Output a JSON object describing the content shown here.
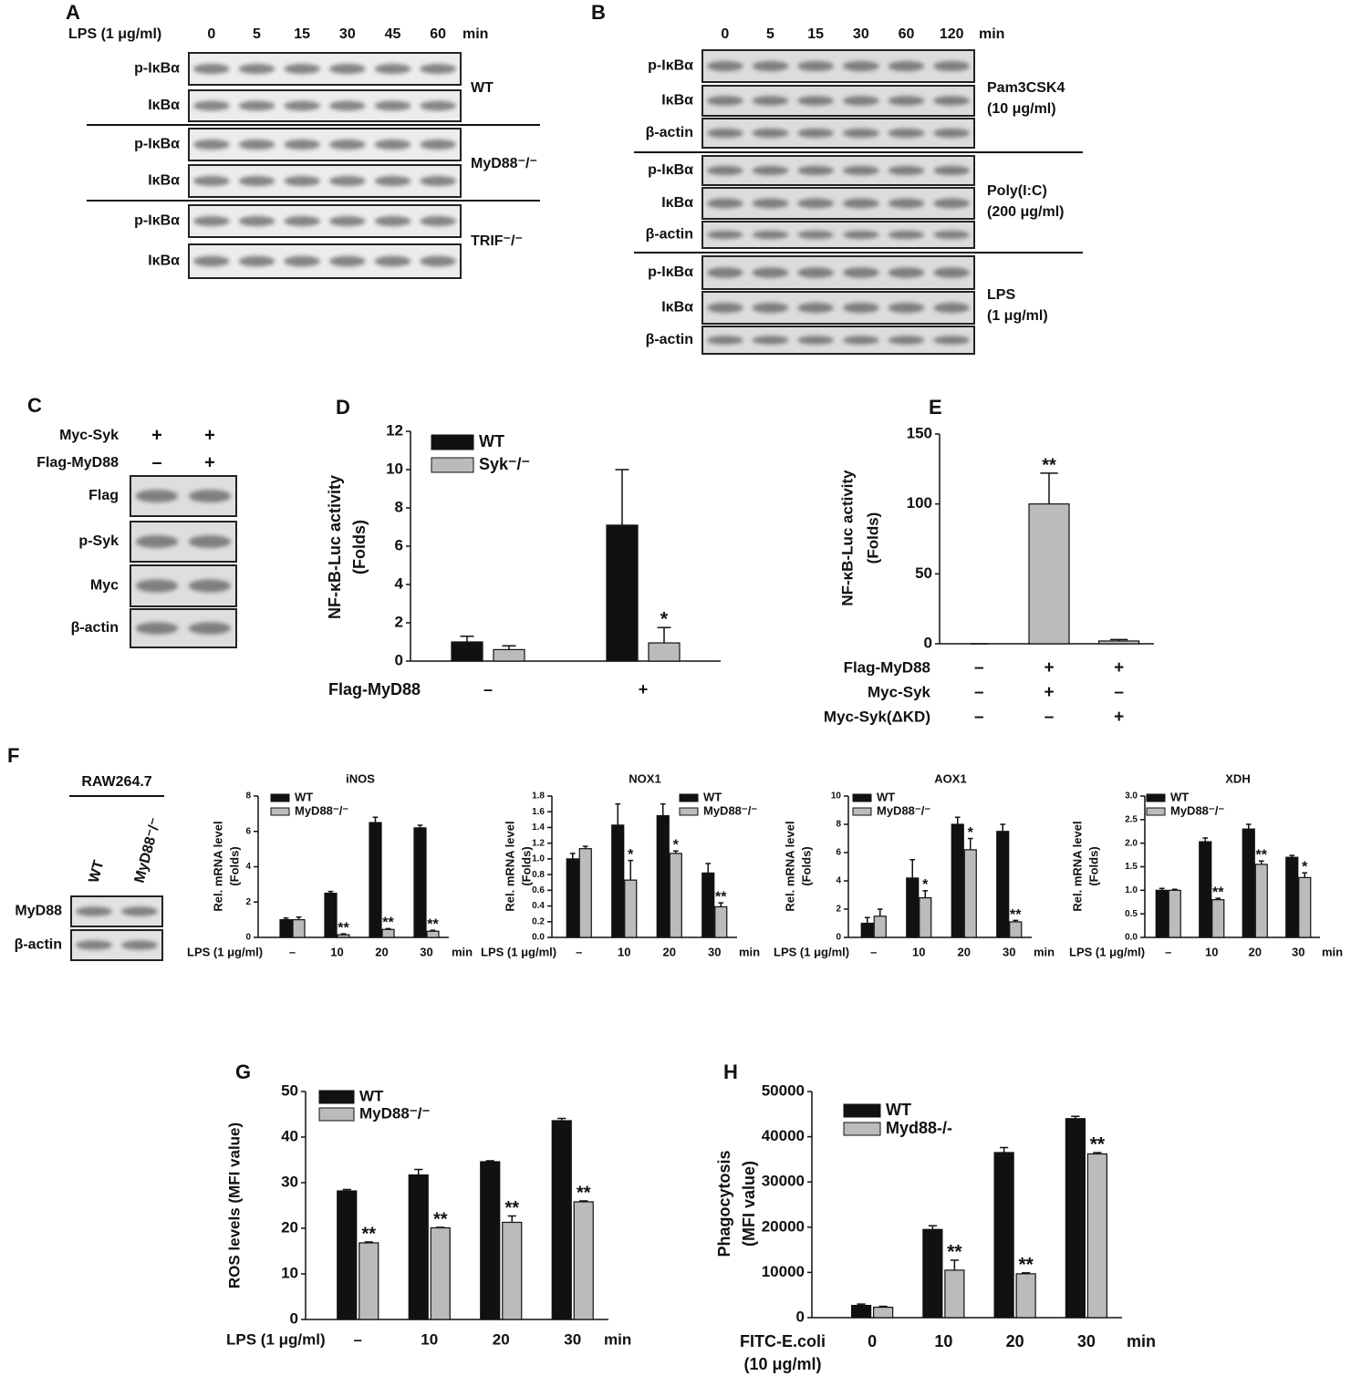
{
  "panel_labels": [
    "A",
    "B",
    "C",
    "D",
    "E",
    "F",
    "G",
    "H"
  ],
  "blots": [
    {
      "header_label": "LPS (1 μg/ml)",
      "lanes": [
        "0",
        "5",
        "15",
        "30",
        "45",
        "60"
      ],
      "unit": "min",
      "groups": [
        {
          "label": "WT",
          "rows": [
            "p-IκBα",
            "IκBα"
          ]
        },
        {
          "label": "MyD88⁻/⁻",
          "rows": [
            "p-IκBα",
            "IκBα"
          ]
        },
        {
          "label": "TRIF⁻/⁻",
          "rows": [
            "p-IκBα",
            "IκBα"
          ]
        }
      ]
    },
    {
      "lanes": [
        "0",
        "5",
        "15",
        "30",
        "60",
        "120"
      ],
      "unit": "min",
      "groups": [
        {
          "label": [
            "Pam3CSK4",
            "(10 μg/ml)"
          ],
          "rows": [
            "p-IκBα",
            "IκBα",
            "β-actin"
          ]
        },
        {
          "label": [
            "Poly(I:C)",
            "(200 μg/ml)"
          ],
          "rows": [
            "p-IκBα",
            "IκBα",
            "β-actin"
          ]
        },
        {
          "label": [
            "LPS",
            "(1 μg/ml)"
          ],
          "rows": [
            "p-IκBα",
            "IκBα",
            "β-actin"
          ]
        }
      ]
    },
    {
      "conditions": [
        {
          "label": "Myc-Syk",
          "signs": [
            "+",
            "+"
          ]
        },
        {
          "label": "Flag-MyD88",
          "signs": [
            "–",
            "+"
          ]
        }
      ],
      "groups": [
        {
          "rows": [
            "Flag",
            "p-Syk",
            "Myc",
            "β-actin"
          ]
        }
      ]
    },
    {
      "title": "RAW264.7",
      "lanes": [
        "WT",
        "MyD88⁻/⁻"
      ],
      "groups": [
        {
          "rows": [
            "MyD88",
            "β-actin"
          ]
        }
      ]
    }
  ],
  "chart_data": [
    {
      "type": "bar",
      "y_label": [
        "NF-κB-Luc activity",
        "(Folds)"
      ],
      "x_label": "Flag-MyD88",
      "categories": [
        "–",
        "+"
      ],
      "ylim": [
        0,
        12
      ],
      "yticks": [
        0,
        2,
        4,
        6,
        8,
        10,
        12
      ],
      "series": [
        {
          "name": "WT",
          "color": "#111111",
          "values": [
            1.0,
            7.1
          ],
          "errors": [
            0.3,
            2.9
          ],
          "stars": [
            null,
            null
          ]
        },
        {
          "name": "Syk⁻/⁻",
          "color": "#bbbbbb",
          "values": [
            0.6,
            0.95
          ],
          "errors": [
            0.2,
            0.8
          ],
          "stars": [
            null,
            "*"
          ]
        }
      ]
    },
    {
      "type": "bar",
      "y_label": [
        "NF-κB-Luc activity",
        "(Folds)"
      ],
      "ylim": [
        0,
        150
      ],
      "yticks": [
        0,
        50,
        100,
        150
      ],
      "conditions": [
        {
          "label": "Flag-MyD88",
          "signs": [
            "–",
            "+",
            "+"
          ]
        },
        {
          "label": "Myc-Syk",
          "signs": [
            "–",
            "+",
            "–"
          ]
        },
        {
          "label": "Myc-Syk(ΔKD)",
          "signs": [
            "–",
            "–",
            "+"
          ]
        }
      ],
      "series": [
        {
          "color": "#bbbbbb",
          "values": [
            0,
            100,
            2
          ],
          "errors": [
            0,
            22,
            1
          ],
          "stars": [
            null,
            "**",
            null
          ]
        }
      ]
    },
    {
      "type": "bar",
      "title": "iNOS",
      "y_label": [
        "Rel. mRNA level",
        "(Folds)"
      ],
      "x_label": "LPS (1 μg/ml)",
      "x_unit": "min",
      "categories": [
        "–",
        "10",
        "20",
        "30"
      ],
      "ylim": [
        0,
        8
      ],
      "yticks": [
        0,
        2,
        4,
        6,
        8
      ],
      "series": [
        {
          "name": "WT",
          "color": "#111111",
          "values": [
            1.0,
            2.5,
            6.5,
            6.2
          ],
          "errors": [
            0.1,
            0.1,
            0.3,
            0.15
          ],
          "stars": [
            null,
            null,
            null,
            null
          ]
        },
        {
          "name": "MyD88⁻/⁻",
          "color": "#bbbbbb",
          "values": [
            1.0,
            0.15,
            0.45,
            0.35
          ],
          "errors": [
            0.15,
            0.05,
            0.05,
            0.05
          ],
          "stars": [
            null,
            "**",
            "**",
            "**"
          ]
        }
      ]
    },
    {
      "type": "bar",
      "title": "NOX1",
      "y_label": [
        "Rel. mRNA level",
        "(Folds)"
      ],
      "x_label": "LPS (1 μg/ml)",
      "x_unit": "min",
      "categories": [
        "–",
        "10",
        "20",
        "30"
      ],
      "ylim": [
        0,
        1.8
      ],
      "yticks": [
        {
          "value": 0,
          "label": "0.0"
        },
        0.2,
        0.4,
        0.6,
        0.8,
        {
          "value": 1,
          "label": "1.0"
        },
        1.2,
        1.4,
        1.6,
        1.8
      ],
      "series": [
        {
          "name": "WT",
          "color": "#111111",
          "values": [
            1.0,
            1.43,
            1.55,
            0.82
          ],
          "errors": [
            0.07,
            0.27,
            0.15,
            0.12
          ],
          "stars": [
            null,
            null,
            null,
            null
          ]
        },
        {
          "name": "MyD88⁻/⁻",
          "color": "#bbbbbb",
          "values": [
            1.13,
            0.73,
            1.07,
            0.39
          ],
          "errors": [
            0.03,
            0.25,
            0.03,
            0.05
          ],
          "stars": [
            null,
            "*",
            "*",
            "**"
          ]
        }
      ]
    },
    {
      "type": "bar",
      "title": "AOX1",
      "y_label": [
        "Rel. mRNA level",
        "(Folds)"
      ],
      "x_label": "LPS (1 μg/ml)",
      "x_unit": "min",
      "categories": [
        "–",
        "10",
        "20",
        "30"
      ],
      "ylim": [
        0,
        10
      ],
      "yticks": [
        0,
        2,
        4,
        6,
        8,
        10
      ],
      "series": [
        {
          "name": "WT",
          "color": "#111111",
          "values": [
            1.0,
            4.2,
            8.0,
            7.5
          ],
          "errors": [
            0.4,
            1.3,
            0.5,
            0.5
          ],
          "stars": [
            null,
            null,
            null,
            null
          ]
        },
        {
          "name": "MyD88⁻/⁻",
          "color": "#bbbbbb",
          "values": [
            1.5,
            2.8,
            6.2,
            1.1
          ],
          "errors": [
            0.5,
            0.5,
            0.8,
            0.1
          ],
          "stars": [
            null,
            "*",
            "*",
            "**"
          ]
        }
      ]
    },
    {
      "type": "bar",
      "title": "XDH",
      "y_label": [
        "Rel. mRNA level",
        "(Folds)"
      ],
      "x_label": "LPS (1 μg/ml)",
      "x_unit": "min",
      "categories": [
        "–",
        "10",
        "20",
        "30"
      ],
      "ylim": [
        0,
        3
      ],
      "yticks": [
        {
          "value": 0,
          "label": "0.0"
        },
        0.5,
        {
          "value": 1,
          "label": "1.0"
        },
        1.5,
        {
          "value": 2,
          "label": "2.0"
        },
        2.5,
        {
          "value": 3,
          "label": "3.0"
        }
      ],
      "series": [
        {
          "name": "WT",
          "color": "#111111",
          "values": [
            1.0,
            2.03,
            2.3,
            1.7
          ],
          "errors": [
            0.04,
            0.08,
            0.1,
            0.04
          ],
          "stars": [
            null,
            null,
            null,
            null
          ]
        },
        {
          "name": "MyD88⁻/⁻",
          "color": "#bbbbbb",
          "values": [
            1.0,
            0.8,
            1.55,
            1.27
          ],
          "errors": [
            0.02,
            0.03,
            0.07,
            0.1
          ],
          "stars": [
            null,
            "**",
            "**",
            "*"
          ]
        }
      ]
    },
    {
      "type": "bar",
      "y_label": "ROS levels (MFI value)",
      "x_label": "LPS (1 μg/ml)",
      "x_unit": "min",
      "categories": [
        "–",
        "10",
        "20",
        "30"
      ],
      "ylim": [
        0,
        50
      ],
      "yticks": [
        0,
        10,
        20,
        30,
        40,
        50
      ],
      "series": [
        {
          "name": "WT",
          "color": "#111111",
          "values": [
            28.2,
            31.7,
            34.6,
            43.6
          ],
          "errors": [
            0.3,
            1.2,
            0.2,
            0.5
          ],
          "stars": [
            null,
            null,
            null,
            null
          ]
        },
        {
          "name": "MyD88⁻/⁻",
          "color": "#bbbbbb",
          "values": [
            16.8,
            20.1,
            21.3,
            25.8
          ],
          "errors": [
            0.2,
            0.1,
            1.4,
            0.2
          ],
          "stars": [
            "**",
            "**",
            "**",
            "**"
          ]
        }
      ]
    },
    {
      "type": "bar",
      "y_label": [
        "Phagocytosis",
        "(MFI value)"
      ],
      "x_label": [
        "FITC-E.coli",
        "(10 μg/ml)"
      ],
      "x_unit": "min",
      "categories": [
        "0",
        "10",
        "20",
        "30"
      ],
      "ylim": [
        0,
        50000
      ],
      "yticks": [
        0,
        10000,
        20000,
        30000,
        40000,
        50000
      ],
      "series": [
        {
          "name": "WT",
          "color": "#111111",
          "values": [
            2700,
            19500,
            36500,
            44000
          ],
          "errors": [
            300,
            800,
            1100,
            500
          ],
          "stars": [
            null,
            null,
            null,
            null
          ]
        },
        {
          "name": "Myd88-/-",
          "color": "#bbbbbb",
          "values": [
            2300,
            10500,
            9700,
            36200
          ],
          "errors": [
            200,
            2200,
            200,
            300
          ],
          "stars": [
            null,
            "**",
            "**",
            "**"
          ]
        }
      ]
    }
  ]
}
